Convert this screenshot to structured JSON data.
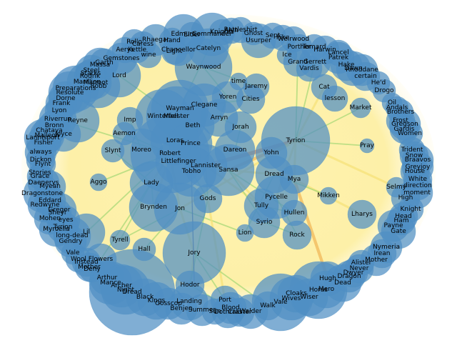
{
  "colors": {
    "node": "#4f8fc4",
    "edge_light": "#f5e27a",
    "edge_mid": "#f0b85a",
    "edge_strong": "#e8894a",
    "edge_green": "#a8d878",
    "edge_dark": "#5a6a8a"
  },
  "graph": {
    "labels": {
      "Tyrion": "Tyrion",
      "Wayman": "Wayman",
      "Maester": "Maester",
      "Winterfell": "Winterfell",
      "Clegane": "Clegane",
      "Arryn": "Arryn",
      "Beth": "Beth",
      "Jorah": "Jorah",
      "Prince": "Prince",
      "Loras": "Loras",
      "Moreo": "Moreo",
      "Robert": "Robert",
      "Littlefinger": "Littlefinger",
      "Lannister": "Lannister",
      "Tobho": "Tobho",
      "Sansa": "Sansa",
      "Dareon": "Dareon",
      "Yohn": "Yohn",
      "Dread": "Dread",
      "Mya": "Mya",
      "Lady": "Lady",
      "Gods": "Gods",
      "Brynden": "Brynden",
      "Jon": "Jon",
      "Pycelle": "Pycelle",
      "Tully": "Tully",
      "Hullen": "Hullen",
      "Syrio": "Syrio",
      "Lion": "Lion",
      "Rock": "Rock",
      "Jory": "Jory",
      "Hall": "Hall",
      "Tyrell": "Tyrell",
      "Hodor": "Hodor",
      "Port": "Port",
      "Blood": "Blood",
      "Yoren": "Yoren",
      "Cities": "Cities",
      "Jaremy": "Jaremy",
      "time": "time",
      "Waynwood": "Waynwood",
      "Catelyn": "Catelyn",
      "Usurper": "Usurper",
      "Commander": "Commander",
      "Ice": "Ice",
      "Grand": "Grand",
      "Gerrett": "Gerrett",
      "Cat": "Cat",
      "lesson": "lesson",
      "Market": "Market",
      "Pray": "Pray",
      "Mikken": "Mikken",
      "Lharys": "Lharys",
      "Selmy": "Selmy",
      "Imp": "Imp",
      "Aemon": "Aemon",
      "Slynt": "Slynt",
      "Aggo": "Aggo",
      "Lord": "Lord",
      "Gemstones": "Gemstones",
      "wine": "wine",
      "Light": "Light",
      "Chancellor": "Chancellor",
      "Edmure": "Edmure",
      "Rhaegar": "Rhaegar",
      "Caress": "Caress",
      "Preparations": "Preparations",
      "Resolute": "Resolute",
      "Dorne": "Dorne",
      "Frank": "Frank",
      "Lyon": "Lyon",
      "Reyne": "Reyne",
      "Riverrun": "Riverrun",
      "Bronn": "Bronn",
      "Chataya": "Chataya",
      "Malleon": "Malleon",
      "Joyce": "Joyce",
      "Lannisport": "Lannisport",
      "Fisher": "Fisher",
      "always": "always",
      "Dickon": "Dickon",
      "Flynt": "Flynt",
      "Stories": "Stories",
      "Grace": "Grace",
      "Daenerys": "Daenerys",
      "Myean": "Myean",
      "Dragonstone": "Dragonstone",
      "Redwyne": "Redwyne",
      "Eddard": "Eddard",
      "Gregor": "Gregor",
      "Sheyl": "Sheyl",
      "Mohen": "Mohen",
      "eyes": "eyes",
      "Myrcella": "Myrcella",
      "Tyrion_l": "Tyrion",
      "long-dead": "long-dead",
      "Lil": "Lil",
      "Gendry": "Gendry",
      "Vale": "Vale",
      "Flowers": "Flowers",
      "Wool": "Wool",
      "Instead": "Instead",
      "Mother": "Mother",
      "Deny": "Deny",
      "Arthur": "Arthur",
      "Mance": "Mance",
      "Archer": "Archer",
      "Night": "Night",
      "Dread2": "Dread",
      "Black": "Black",
      "Kings": "Kings",
      "Landing": "Landing",
      "Gosscop": "Gosscop",
      "Benjen": "Benjen",
      "Summer": "Summer",
      "Sun": "Sun",
      "Dothraki": "Dothraki",
      "Craster": "Craster",
      "Walder": "Walder",
      "Walk": "Walk",
      "Vale2": "Vale",
      "Wives": "Wives",
      "Cloaks": "Cloaks",
      "Wiser": "Wiser",
      "Horas": "Horas",
      "Mero": "Mero",
      "Hugh": "Hugh",
      "Dead": "Dead",
      "Dragon": "Dragon",
      "Dwyer": "Dwyer",
      "Never": "Never",
      "Alister": "Alister",
      "Mother2": "Mother",
      "Irean": "Irean",
      "Nymeria": "Nymeria",
      "Gate": "Gate",
      "Payne": "Payne",
      "Ham": "Ham",
      "Head": "Head",
      "Knight": "Knight",
      "High": "High",
      "moment": "moment",
      "direction": "direction",
      "White": "White",
      "House": "House",
      "Greyjoy": "Greyjoy",
      "Braavos": "Braavos",
      "Snow": "Snow",
      "Trident": "Trident",
      "Women": "Women",
      "Gardis": "Gardis",
      "Gregson": "Gregson",
      "Frost": "Frost",
      "Brothers": "Brothers",
      "Andals": "Andals",
      "Oil": "Oil",
      "Drogo": "Drogo",
      "Hed": "He'd",
      "certain": "certain",
      "Rhoddane": "Rhoddane",
      "Dawn": "Dawn",
      "Brynden2": "Hake",
      "Patrek": "Patrek",
      "Marmot": "Marmot",
      "Robb": "Robb",
      "Marillion": "Marillion",
      "Rodrik": "Rodrik",
      "Massa": "Massa",
      "Steel": "Steel",
      "Starks": "Starks",
      "Garth": "Garth",
      "Rollo": "Rollo",
      "Aerys": "Aerys",
      "Kettle": "Kettle",
      "Hand": "Hand",
      "Elder": "Elder",
      "Knights": "Knights",
      "Alyn": "Alyn",
      "Rattleshirt": "Rattleshirt",
      "Ghost": "Ghost",
      "Sept": "Sept",
      "Pike": "Pike",
      "Weirwood": "Weirwood",
      "Lancel": "Lancel",
      "Harwin": "Harwin",
      "Tomard": "Tomard",
      "Vardis": "Vardis",
      "Porther": "Porther"
    }
  }
}
